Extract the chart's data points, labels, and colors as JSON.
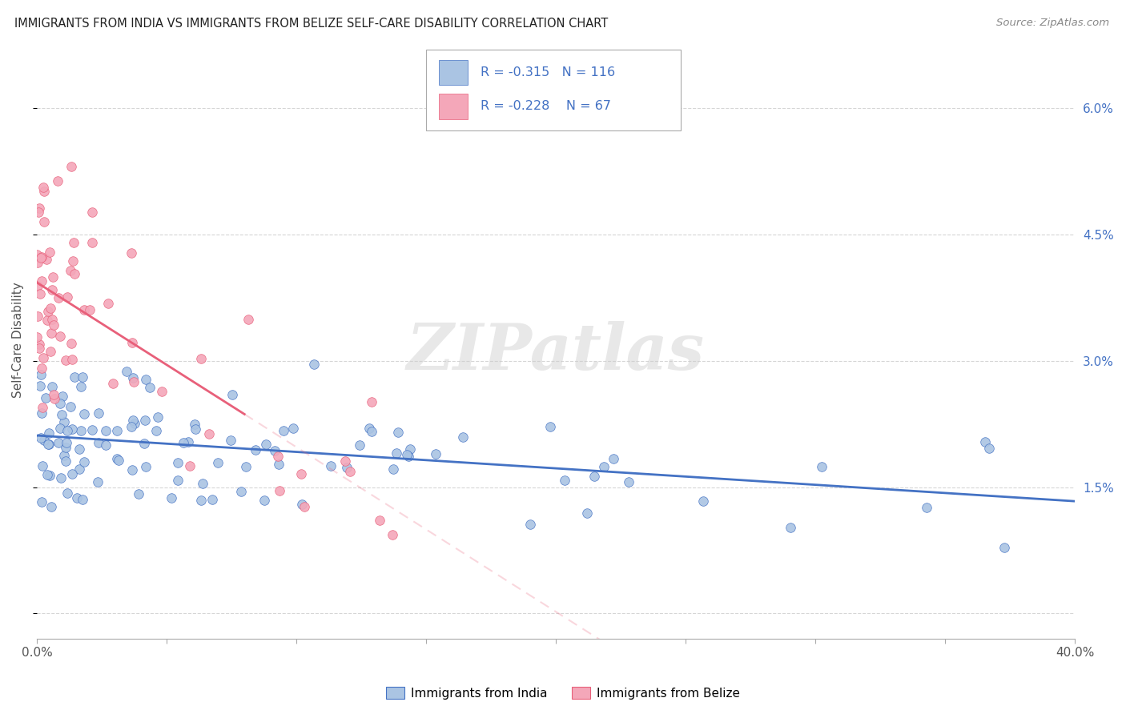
{
  "title": "IMMIGRANTS FROM INDIA VS IMMIGRANTS FROM BELIZE SELF-CARE DISABILITY CORRELATION CHART",
  "source": "Source: ZipAtlas.com",
  "ylabel": "Self-Care Disability",
  "y_ticks": [
    0.0,
    0.015,
    0.03,
    0.045,
    0.06
  ],
  "y_tick_labels": [
    "",
    "1.5%",
    "3.0%",
    "4.5%",
    "6.0%"
  ],
  "x_range": [
    0.0,
    0.4
  ],
  "y_range": [
    -0.003,
    0.068
  ],
  "legend_india": "Immigrants from India",
  "legend_belize": "Immigrants from Belize",
  "r_india": -0.315,
  "n_india": 116,
  "r_belize": -0.228,
  "n_belize": 67,
  "color_india": "#aac4e3",
  "color_belize": "#f4a7b9",
  "line_color_india": "#4472c4",
  "line_color_belize": "#e8607a",
  "watermark": "ZIPatlas"
}
